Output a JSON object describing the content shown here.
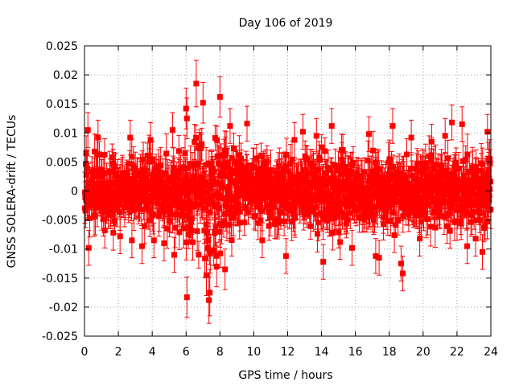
{
  "chart_data": {
    "type": "scatter",
    "title": "Day 106 of 2019",
    "xlabel": "GPS time / hours",
    "ylabel": "GNSS SOLERA-drift / TECUs",
    "xlim": [
      0,
      24
    ],
    "ylim": [
      -0.025,
      0.025
    ],
    "xticks": [
      0,
      2,
      4,
      6,
      8,
      10,
      12,
      14,
      16,
      18,
      20,
      22,
      24
    ],
    "xtick_labels": [
      "0",
      "2",
      "4",
      "6",
      "8",
      "10",
      "12",
      "14",
      "16",
      "18",
      "20",
      "22",
      "24"
    ],
    "yticks": [
      -0.025,
      -0.02,
      -0.015,
      -0.01,
      -0.005,
      0,
      0.005,
      0.01,
      0.015,
      0.02,
      0.025
    ],
    "ytick_labels": [
      "-0.025",
      "-0.02",
      "-0.015",
      "-0.01",
      "-0.005",
      "0",
      "0.005",
      "0.01",
      "0.015",
      "0.02",
      "0.025"
    ],
    "grid": true,
    "marker": "square",
    "error_bars": true,
    "series_color": "#ff0000",
    "series": [
      {
        "name": "SOLERA drift",
        "points": [
          {
            "x": 0.1,
            "y": 0.0065,
            "err": 0.003
          },
          {
            "x": 0.2,
            "y": 0.0105,
            "err": 0.003
          },
          {
            "x": 0.25,
            "y": -0.0098,
            "err": 0.003
          },
          {
            "x": 0.6,
            "y": 0.0068,
            "err": 0.003
          },
          {
            "x": 0.8,
            "y": 0.0092,
            "err": 0.003
          },
          {
            "x": 1.2,
            "y": -0.0068,
            "err": 0.003
          },
          {
            "x": 1.7,
            "y": -0.0072,
            "err": 0.003
          },
          {
            "x": 2.1,
            "y": -0.0078,
            "err": 0.003
          },
          {
            "x": 2.7,
            "y": 0.0092,
            "err": 0.003
          },
          {
            "x": 2.8,
            "y": -0.0085,
            "err": 0.003
          },
          {
            "x": 3.4,
            "y": -0.0095,
            "err": 0.003
          },
          {
            "x": 3.9,
            "y": 0.0088,
            "err": 0.003
          },
          {
            "x": 4.1,
            "y": -0.0085,
            "err": 0.003
          },
          {
            "x": 4.7,
            "y": -0.009,
            "err": 0.003
          },
          {
            "x": 5.2,
            "y": 0.0105,
            "err": 0.003
          },
          {
            "x": 5.3,
            "y": -0.011,
            "err": 0.003
          },
          {
            "x": 6.0,
            "y": 0.0142,
            "err": 0.0035
          },
          {
            "x": 6.05,
            "y": 0.0125,
            "err": 0.0035
          },
          {
            "x": 6.05,
            "y": -0.0183,
            "err": 0.0035
          },
          {
            "x": 6.6,
            "y": 0.0185,
            "err": 0.004
          },
          {
            "x": 7.0,
            "y": 0.0152,
            "err": 0.0035
          },
          {
            "x": 7.2,
            "y": -0.0145,
            "err": 0.0035
          },
          {
            "x": 7.35,
            "y": -0.0188,
            "err": 0.004
          },
          {
            "x": 7.4,
            "y": -0.0175,
            "err": 0.004
          },
          {
            "x": 7.8,
            "y": -0.013,
            "err": 0.0035
          },
          {
            "x": 8.0,
            "y": 0.0162,
            "err": 0.0035
          },
          {
            "x": 8.3,
            "y": -0.0135,
            "err": 0.0035
          },
          {
            "x": 8.6,
            "y": 0.0112,
            "err": 0.003
          },
          {
            "x": 9.6,
            "y": 0.0116,
            "err": 0.003
          },
          {
            "x": 10.5,
            "y": -0.0085,
            "err": 0.003
          },
          {
            "x": 11.9,
            "y": -0.0112,
            "err": 0.003
          },
          {
            "x": 12.4,
            "y": 0.0088,
            "err": 0.003
          },
          {
            "x": 12.9,
            "y": 0.0102,
            "err": 0.003
          },
          {
            "x": 13.7,
            "y": 0.0095,
            "err": 0.003
          },
          {
            "x": 14.1,
            "y": -0.0122,
            "err": 0.003
          },
          {
            "x": 14.6,
            "y": 0.0112,
            "err": 0.003
          },
          {
            "x": 15.1,
            "y": -0.0088,
            "err": 0.003
          },
          {
            "x": 15.8,
            "y": -0.0098,
            "err": 0.003
          },
          {
            "x": 16.8,
            "y": 0.0098,
            "err": 0.003
          },
          {
            "x": 17.2,
            "y": -0.0112,
            "err": 0.003
          },
          {
            "x": 17.4,
            "y": -0.0115,
            "err": 0.003
          },
          {
            "x": 18.2,
            "y": 0.0112,
            "err": 0.003
          },
          {
            "x": 18.3,
            "y": -0.0076,
            "err": 0.003
          },
          {
            "x": 18.7,
            "y": -0.0125,
            "err": 0.003
          },
          {
            "x": 18.8,
            "y": -0.0142,
            "err": 0.003
          },
          {
            "x": 19.3,
            "y": 0.0092,
            "err": 0.003
          },
          {
            "x": 19.8,
            "y": -0.0082,
            "err": 0.003
          },
          {
            "x": 20.5,
            "y": 0.0085,
            "err": 0.003
          },
          {
            "x": 21.3,
            "y": 0.0095,
            "err": 0.003
          },
          {
            "x": 21.7,
            "y": 0.0118,
            "err": 0.003
          },
          {
            "x": 22.3,
            "y": 0.0115,
            "err": 0.003
          },
          {
            "x": 22.6,
            "y": -0.0095,
            "err": 0.003
          },
          {
            "x": 23.1,
            "y": -0.0082,
            "err": 0.003
          },
          {
            "x": 23.5,
            "y": -0.0105,
            "err": 0.003
          },
          {
            "x": 23.8,
            "y": 0.0102,
            "err": 0.003
          }
        ],
        "band": {
          "description": "dense band of many points",
          "center": 0.0,
          "spread_by_hour": [
            {
              "x": 0,
              "spread": 0.005
            },
            {
              "x": 3,
              "spread": 0.0045
            },
            {
              "x": 5,
              "spread": 0.005
            },
            {
              "x": 6,
              "spread": 0.0068
            },
            {
              "x": 7,
              "spread": 0.009
            },
            {
              "x": 8,
              "spread": 0.0085
            },
            {
              "x": 9,
              "spread": 0.006
            },
            {
              "x": 10,
              "spread": 0.0045
            },
            {
              "x": 12,
              "spread": 0.0048
            },
            {
              "x": 14,
              "spread": 0.0058
            },
            {
              "x": 16,
              "spread": 0.0052
            },
            {
              "x": 18,
              "spread": 0.0055
            },
            {
              "x": 20,
              "spread": 0.0045
            },
            {
              "x": 22,
              "spread": 0.0055
            },
            {
              "x": 24,
              "spread": 0.0058
            }
          ],
          "point_count": 1400
        }
      }
    ]
  }
}
